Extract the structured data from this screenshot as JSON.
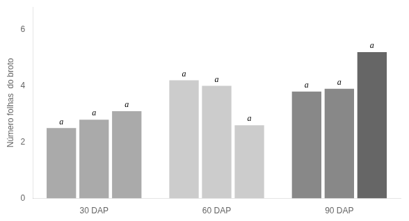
{
  "chart_data": {
    "type": "bar",
    "categories": [
      "30 DAP",
      "60 DAP",
      "90 DAP"
    ],
    "series": [
      {
        "values": [
          2.5,
          4.2,
          3.8
        ],
        "colors": [
          "#aaaaaa",
          "#cccccc",
          "#888888"
        ],
        "value_labels": [
          "a",
          "a",
          "a"
        ]
      },
      {
        "values": [
          2.8,
          4.0,
          3.9
        ],
        "colors": [
          "#aaaaaa",
          "#cccccc",
          "#888888"
        ],
        "value_labels": [
          "a",
          "a",
          "a"
        ]
      },
      {
        "values": [
          3.1,
          2.6,
          5.2
        ],
        "colors": [
          "#aaaaaa",
          "#cccccc",
          "#666666"
        ],
        "value_labels": [
          "a",
          "a",
          "a"
        ]
      }
    ],
    "ylabel": "Número folhas  do broto",
    "ylim": [
      0,
      6.8
    ],
    "yticks": [
      0,
      2,
      4,
      6
    ],
    "grid": false,
    "data_labels": true
  }
}
